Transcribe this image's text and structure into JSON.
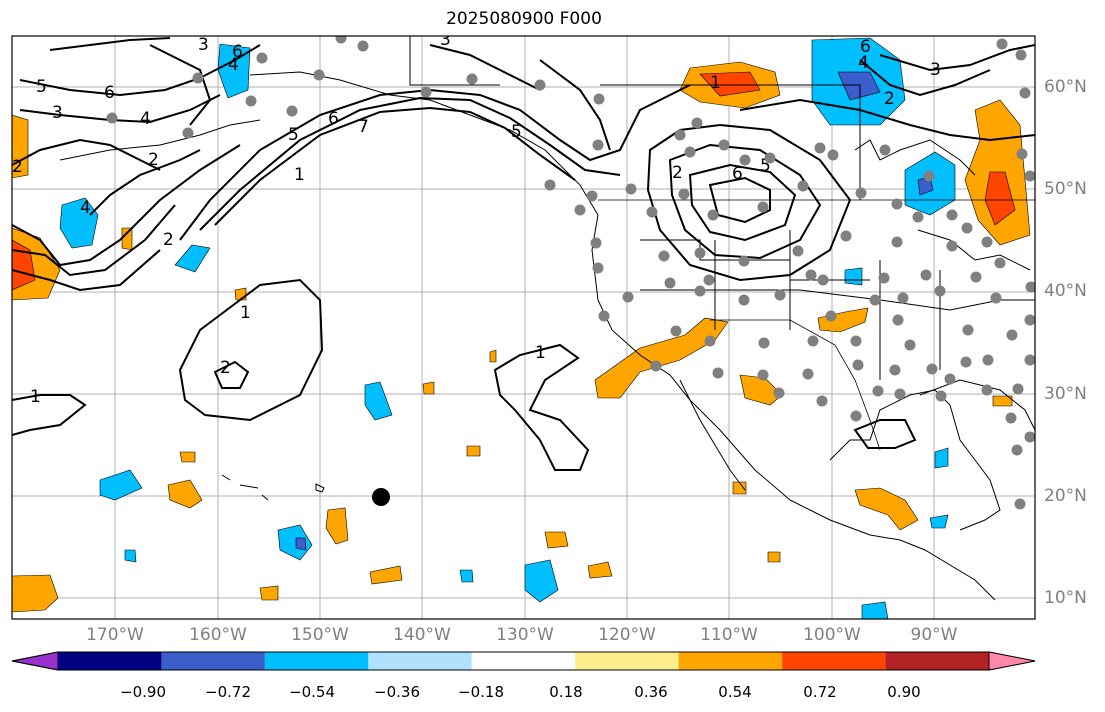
{
  "title": "2025080900 F000",
  "lat_labels": [
    "60°N",
    "50°N",
    "40°N",
    "30°N",
    "20°N",
    "10°N"
  ],
  "lon_labels": [
    "170°W",
    "160°W",
    "150°W",
    "140°W",
    "130°W",
    "120°W",
    "110°W",
    "100°W",
    "90°W"
  ],
  "colorbar": {
    "tick_labels": [
      "−0.90",
      "−0.72",
      "−0.54",
      "−0.36",
      "−0.18",
      "0.18",
      "0.36",
      "0.54",
      "0.72",
      "0.90"
    ],
    "colors": [
      "#9932cc",
      "#000080",
      "#3a5fcd",
      "#00bfff",
      "#b0e2ff",
      "#ffffff",
      "#ffec8b",
      "#ffa500",
      "#ff4500",
      "#b22222",
      "#ff88aa"
    ]
  },
  "contour_labels": [
    "5",
    "6",
    "3",
    "4",
    "2",
    "6",
    "4",
    "3",
    "2",
    "1",
    "6",
    "5",
    "7",
    "1",
    "2",
    "1",
    "1",
    "1",
    "6",
    "4",
    "3",
    "2",
    "6",
    "5",
    "2",
    "5",
    "4",
    "3",
    "2"
  ],
  "colors": {
    "map_border": "#000000",
    "grid": "#b0b0b0",
    "station": "#808080",
    "marker": "#000000"
  }
}
